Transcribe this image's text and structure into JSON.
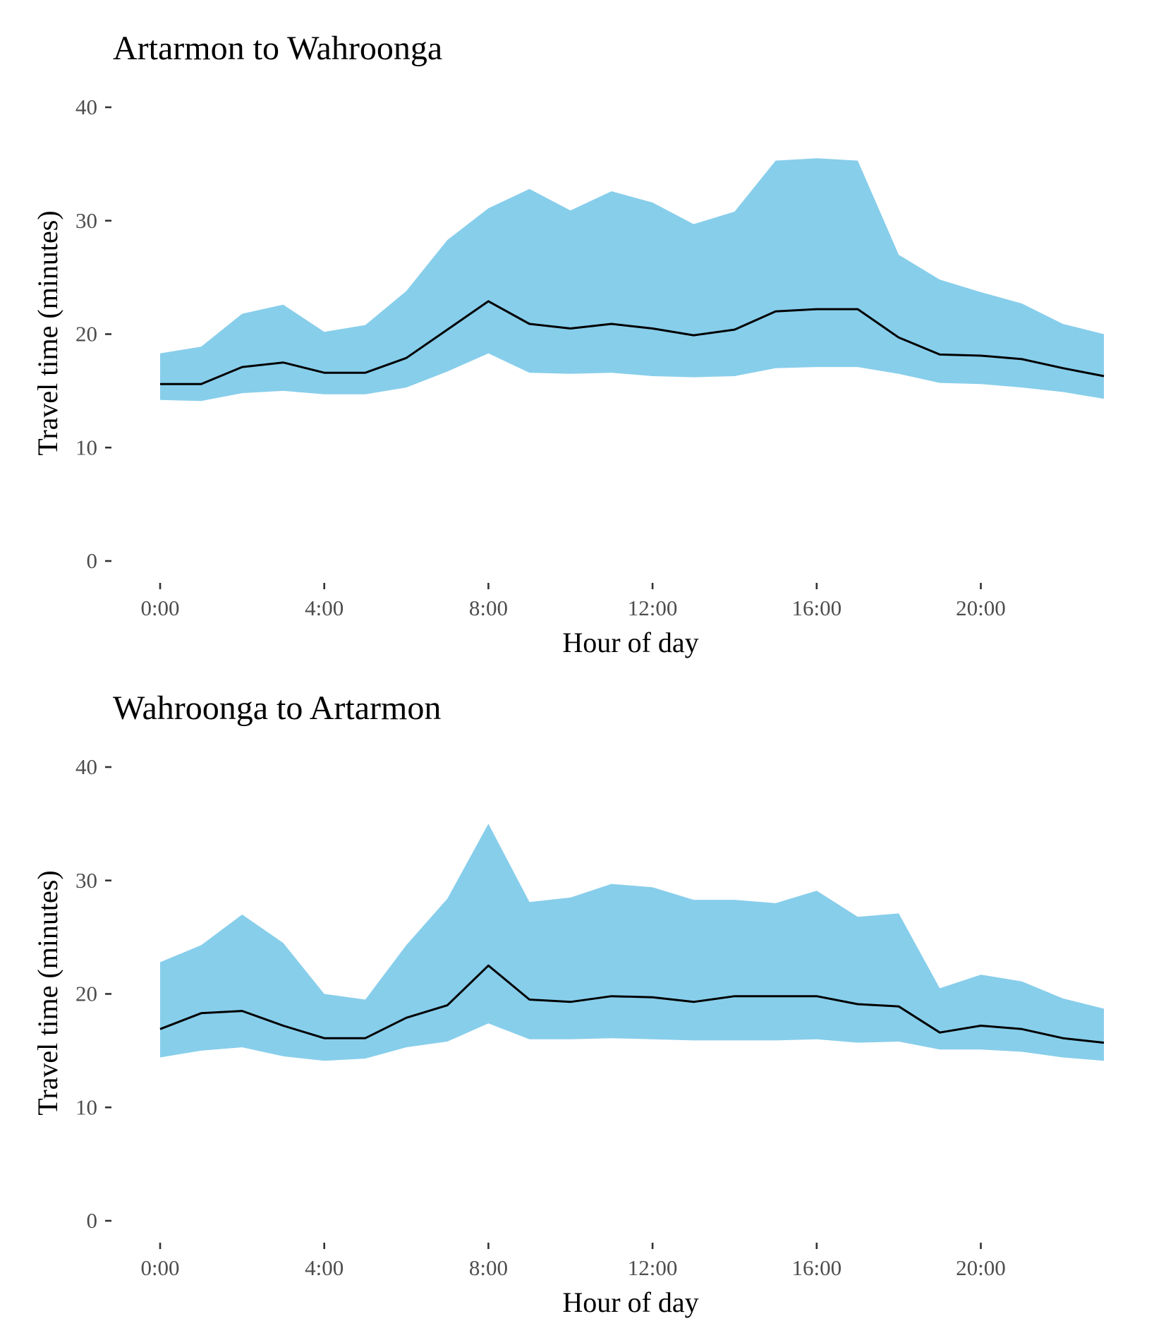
{
  "chart_data": [
    {
      "type": "area",
      "title": "Artarmon to Wahroonga",
      "xlabel": "Hour of day",
      "ylabel": "Travel time (minutes)",
      "xlim": [
        0,
        23
      ],
      "ylim": [
        0,
        40
      ],
      "x": [
        0,
        1,
        2,
        3,
        4,
        5,
        6,
        7,
        8,
        9,
        10,
        11,
        12,
        13,
        14,
        15,
        16,
        17,
        18,
        19,
        20,
        21,
        22,
        23
      ],
      "x_ticks": [
        {
          "value": 0,
          "label": "0:00"
        },
        {
          "value": 4,
          "label": "4:00"
        },
        {
          "value": 8,
          "label": "8:00"
        },
        {
          "value": 12,
          "label": "12:00"
        },
        {
          "value": 16,
          "label": "16:00"
        },
        {
          "value": 20,
          "label": "20:00"
        }
      ],
      "y_ticks": [
        {
          "value": 0,
          "label": "0"
        },
        {
          "value": 10,
          "label": "10"
        },
        {
          "value": 20,
          "label": "20"
        },
        {
          "value": 30,
          "label": "30"
        },
        {
          "value": 40,
          "label": "40"
        }
      ],
      "grid": false,
      "band_color": "#87CEEB",
      "line_color": "#000000",
      "series": [
        {
          "values": [
            14.2,
            14.1,
            14.8,
            15.0,
            14.7,
            14.7,
            15.3,
            16.7,
            18.3,
            16.6,
            16.5,
            16.6,
            16.3,
            16.2,
            16.3,
            17.0,
            17.1,
            17.1,
            16.5,
            15.7,
            15.6,
            15.3,
            14.9,
            14.3
          ]
        },
        {
          "values": [
            18.3,
            18.9,
            21.8,
            22.6,
            20.2,
            20.8,
            23.8,
            28.3,
            31.1,
            32.8,
            30.9,
            32.6,
            31.6,
            29.7,
            30.8,
            35.3,
            35.5,
            35.3,
            27.0,
            24.8,
            23.7,
            22.7,
            20.9,
            20.0
          ]
        },
        {
          "values": [
            15.6,
            15.6,
            17.1,
            17.5,
            16.6,
            16.6,
            17.9,
            20.4,
            22.9,
            20.9,
            20.5,
            20.9,
            20.5,
            19.9,
            20.4,
            22.0,
            22.2,
            22.2,
            19.7,
            18.2,
            18.1,
            17.8,
            17.0,
            16.3
          ]
        }
      ]
    },
    {
      "type": "area",
      "title": "Wahroonga to Artarmon",
      "xlabel": "Hour of day",
      "ylabel": "Travel time (minutes)",
      "xlim": [
        0,
        23
      ],
      "ylim": [
        0,
        40
      ],
      "x": [
        0,
        1,
        2,
        3,
        4,
        5,
        6,
        7,
        8,
        9,
        10,
        11,
        12,
        13,
        14,
        15,
        16,
        17,
        18,
        19,
        20,
        21,
        22,
        23
      ],
      "x_ticks": [
        {
          "value": 0,
          "label": "0:00"
        },
        {
          "value": 4,
          "label": "4:00"
        },
        {
          "value": 8,
          "label": "8:00"
        },
        {
          "value": 12,
          "label": "12:00"
        },
        {
          "value": 16,
          "label": "16:00"
        },
        {
          "value": 20,
          "label": "20:00"
        }
      ],
      "y_ticks": [
        {
          "value": 0,
          "label": "0"
        },
        {
          "value": 10,
          "label": "10"
        },
        {
          "value": 20,
          "label": "20"
        },
        {
          "value": 30,
          "label": "30"
        },
        {
          "value": 40,
          "label": "40"
        }
      ],
      "grid": false,
      "band_color": "#87CEEB",
      "line_color": "#000000",
      "series": [
        {
          "values": [
            14.4,
            15.0,
            15.3,
            14.5,
            14.1,
            14.3,
            15.3,
            15.8,
            17.4,
            16.0,
            16.0,
            16.1,
            16.0,
            15.9,
            15.9,
            15.9,
            16.0,
            15.7,
            15.8,
            15.1,
            15.1,
            14.9,
            14.4,
            14.1
          ]
        },
        {
          "values": [
            22.8,
            24.3,
            27.0,
            24.5,
            20.0,
            19.5,
            24.3,
            28.4,
            35.0,
            28.1,
            28.5,
            29.7,
            29.4,
            28.3,
            28.3,
            28.0,
            29.1,
            26.8,
            27.1,
            20.5,
            21.7,
            21.1,
            19.6,
            18.7
          ]
        },
        {
          "values": [
            16.9,
            18.3,
            18.5,
            17.2,
            16.1,
            16.1,
            17.9,
            19.0,
            22.5,
            19.5,
            19.3,
            19.8,
            19.7,
            19.3,
            19.8,
            19.8,
            19.8,
            19.1,
            18.9,
            16.6,
            17.2,
            16.9,
            16.1,
            15.7
          ]
        }
      ]
    }
  ]
}
